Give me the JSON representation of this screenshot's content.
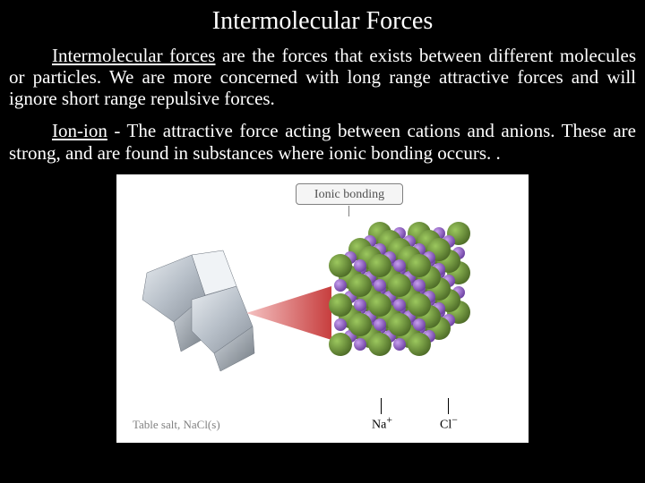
{
  "title": "Intermolecular Forces",
  "para1": {
    "leadTerm": "Intermolecular forces",
    "rest": " are the forces that exists between different molecules or particles.  We are more concerned with long range attractive forces and will ignore short range repulsive forces."
  },
  "para2": {
    "leadTerm": "Ion-ion",
    "rest": " - The attractive force acting between cations and anions. These are strong, and are found in substances where ionic bonding occurs. ."
  },
  "figure": {
    "bondingLabel": "Ionic bonding",
    "saltCaption": "Table salt, NaCl(s)",
    "ionNa": "Na",
    "ionNaSup": "+",
    "ionCl": "Cl",
    "ionClSup": "−",
    "colors": {
      "background": "#ffffff",
      "labelBorder": "#808080",
      "labelFill": "#f5f5f5",
      "captionText": "#808080",
      "cation": "#6a8f3a",
      "cationShade": "#4d6b27",
      "anion": "#a070d0",
      "anionShade": "#7a4fb0",
      "pointer": "#de6a6a",
      "crystalLight": "#d8dde3",
      "crystalDark": "#a3aab3"
    }
  }
}
